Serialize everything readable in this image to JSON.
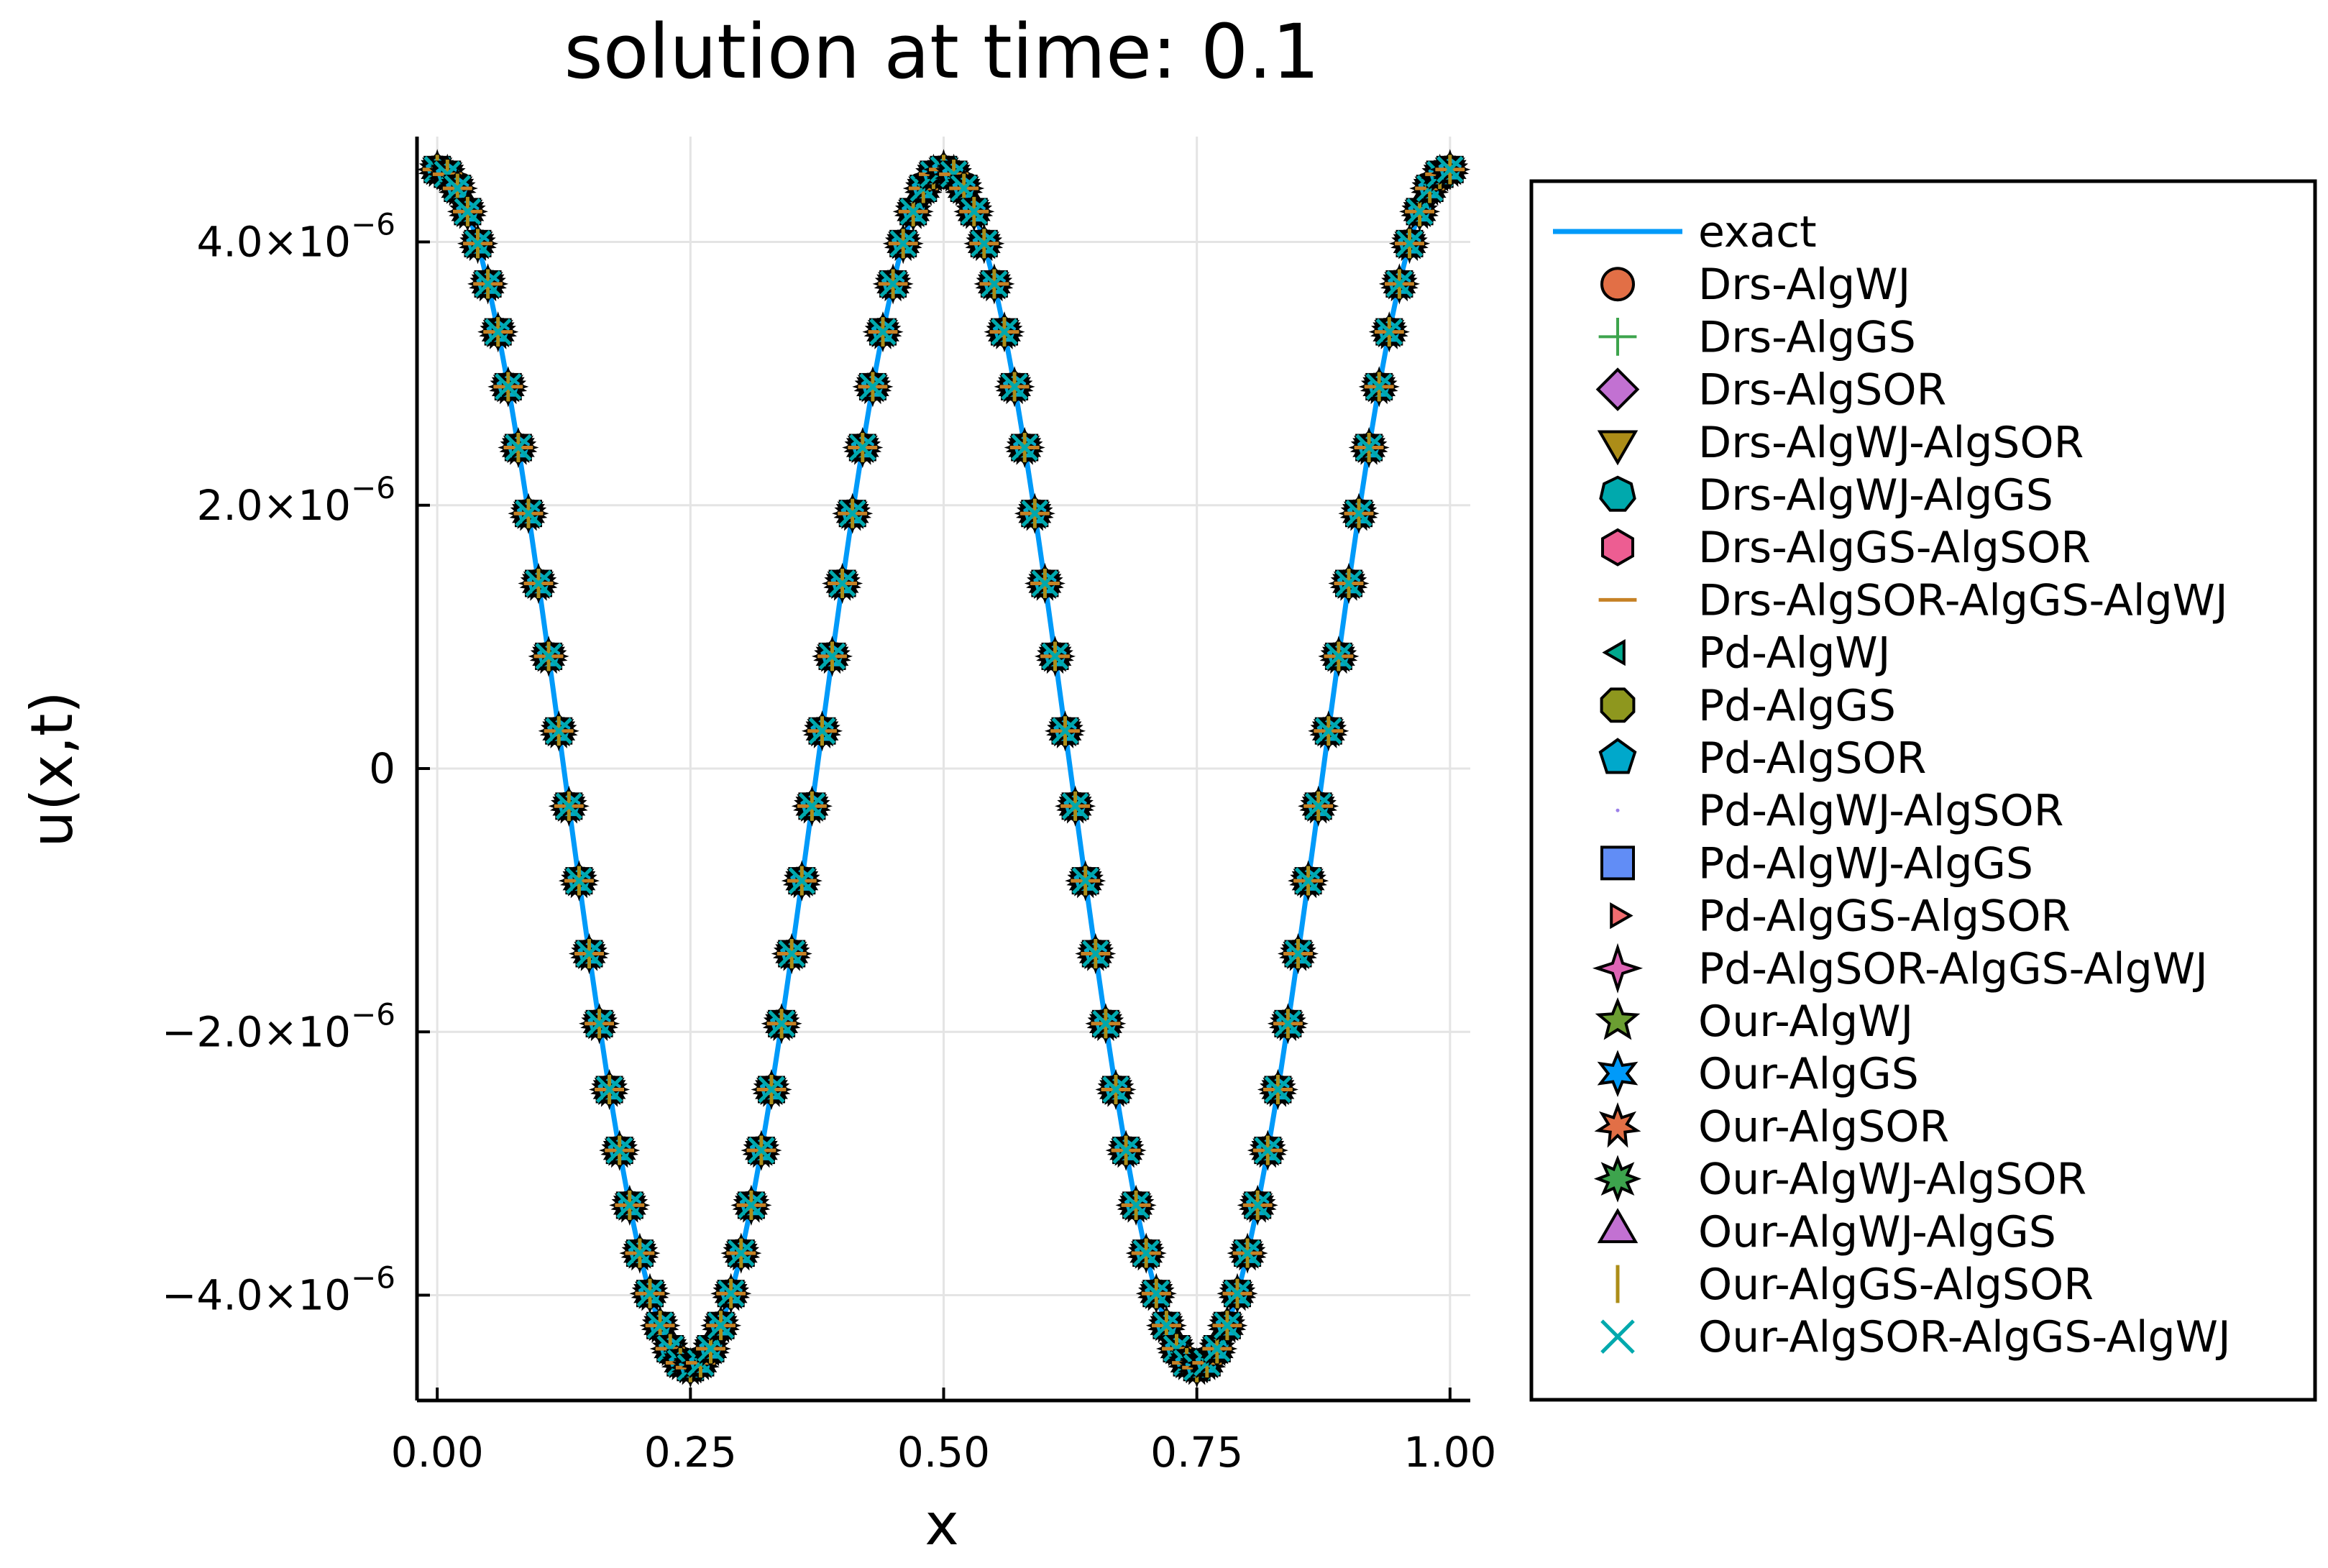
{
  "chart_data": {
    "type": "line",
    "title": "solution at time: 0.1",
    "xlabel": "x",
    "ylabel": "u(x,t)",
    "xlim": [
      -0.02,
      1.02
    ],
    "ylim": [
      -4.8e-06,
      4.8e-06
    ],
    "xticks": [
      {
        "value": 0.0,
        "label": "0.00"
      },
      {
        "value": 0.25,
        "label": "0.25"
      },
      {
        "value": 0.5,
        "label": "0.50"
      },
      {
        "value": 0.75,
        "label": "0.75"
      },
      {
        "value": 1.0,
        "label": "1.00"
      }
    ],
    "yticks": [
      {
        "value": -4e-06,
        "mantissa": "−4.0×10",
        "exponent": "−6"
      },
      {
        "value": -2e-06,
        "mantissa": "−2.0×10",
        "exponent": "−6"
      },
      {
        "value": 0,
        "mantissa": "0",
        "exponent": ""
      },
      {
        "value": 2e-06,
        "mantissa": "2.0×10",
        "exponent": "−6"
      },
      {
        "value": 4e-06,
        "mantissa": "4.0×10",
        "exponent": "−6"
      }
    ],
    "grid": true,
    "legend_position": "outside-right",
    "curve": {
      "amplitude": 4.55e-06,
      "function": "cos",
      "frequency": 4,
      "n_points": 301
    },
    "marker_grid": {
      "start": 0.0,
      "stop": 1.0,
      "n_points": 101
    },
    "series": [
      {
        "name": "exact",
        "marker": "line",
        "color": "#009af9"
      },
      {
        "name": "Drs-AlgWJ",
        "marker": "circle",
        "color": "#e26f46"
      },
      {
        "name": "Drs-AlgGS",
        "marker": "plus",
        "color": "#3da44d"
      },
      {
        "name": "Drs-AlgSOR",
        "marker": "diamond",
        "color": "#c271d2"
      },
      {
        "name": "Drs-AlgWJ-AlgSOR",
        "marker": "dtriangle",
        "color": "#ac8d18"
      },
      {
        "name": "Drs-AlgWJ-AlgGS",
        "marker": "heptagon",
        "color": "#00a9ad"
      },
      {
        "name": "Drs-AlgGS-AlgSOR",
        "marker": "hexagon",
        "color": "#ed5d92"
      },
      {
        "name": "Drs-AlgSOR-AlgGS-AlgWJ",
        "marker": "hline",
        "color": "#c68125"
      },
      {
        "name": "Pd-AlgWJ",
        "marker": "ltriangle",
        "color": "#00a98d"
      },
      {
        "name": "Pd-AlgGS",
        "marker": "octagon",
        "color": "#8e971e"
      },
      {
        "name": "Pd-AlgSOR",
        "marker": "pentagon",
        "color": "#00a8cb"
      },
      {
        "name": "Pd-AlgWJ-AlgSOR",
        "marker": "pixel",
        "color": "#9b7fe9"
      },
      {
        "name": "Pd-AlgWJ-AlgGS",
        "marker": "square",
        "color": "#618df6"
      },
      {
        "name": "Pd-AlgGS-AlgSOR",
        "marker": "rtriangle",
        "color": "#f16c6f"
      },
      {
        "name": "Pd-AlgSOR-AlgGS-AlgWJ",
        "marker": "star4",
        "color": "#dd64b5"
      },
      {
        "name": "Our-AlgWJ",
        "marker": "star5",
        "color": "#6b9e32"
      },
      {
        "name": "Our-AlgGS",
        "marker": "star6",
        "color": "#009af9"
      },
      {
        "name": "Our-AlgSOR",
        "marker": "star7",
        "color": "#e26f46"
      },
      {
        "name": "Our-AlgWJ-AlgSOR",
        "marker": "star8",
        "color": "#3da44d"
      },
      {
        "name": "Our-AlgWJ-AlgGS",
        "marker": "utriangle",
        "color": "#c271d2"
      },
      {
        "name": "Our-AlgGS-AlgSOR",
        "marker": "vline",
        "color": "#ac8d18"
      },
      {
        "name": "Our-AlgSOR-AlgGS-AlgWJ",
        "marker": "xcross",
        "color": "#00a9ad"
      }
    ]
  }
}
